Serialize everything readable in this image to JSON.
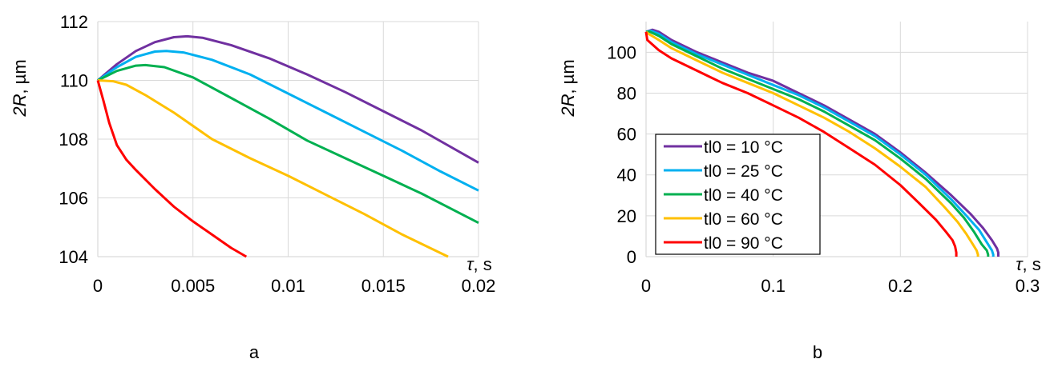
{
  "chart_data": [
    {
      "type": "line",
      "panel_label": "a",
      "ylabel_italic": "2R",
      "ylabel_rest": ", µm",
      "xlabel_italic": "τ",
      "xlabel_rest": ", s",
      "xlim": [
        0,
        0.02
      ],
      "ylim": [
        104,
        112
      ],
      "xticks": [
        0,
        0.005,
        0.01,
        0.015,
        0.02
      ],
      "xtick_labels": [
        "0",
        "0.005",
        "0.01",
        "0.015",
        "0.02"
      ],
      "yticks": [
        104,
        106,
        108,
        110,
        112
      ],
      "ytick_labels": [
        "104",
        "106",
        "108",
        "110",
        "112"
      ],
      "grid": true,
      "series": [
        {
          "color": "#7030A0",
          "x": [
            0,
            0.001,
            0.002,
            0.003,
            0.004,
            0.0047,
            0.0055,
            0.007,
            0.009,
            0.011,
            0.013,
            0.015,
            0.017,
            0.02
          ],
          "y": [
            110,
            110.55,
            111.0,
            111.3,
            111.47,
            111.5,
            111.45,
            111.2,
            110.75,
            110.2,
            109.6,
            108.95,
            108.3,
            107.2
          ]
        },
        {
          "color": "#00B0F0",
          "x": [
            0,
            0.001,
            0.002,
            0.003,
            0.0036,
            0.0045,
            0.006,
            0.008,
            0.01,
            0.012,
            0.014,
            0.016,
            0.018,
            0.02
          ],
          "y": [
            110,
            110.45,
            110.8,
            110.98,
            111.0,
            110.95,
            110.7,
            110.2,
            109.55,
            108.9,
            108.25,
            107.6,
            106.9,
            106.25
          ]
        },
        {
          "color": "#00B050",
          "x": [
            0,
            0.001,
            0.002,
            0.0025,
            0.0035,
            0.005,
            0.007,
            0.009,
            0.011,
            0.013,
            0.015,
            0.017,
            0.02
          ],
          "y": [
            110,
            110.32,
            110.5,
            110.52,
            110.45,
            110.1,
            109.4,
            108.7,
            107.95,
            107.35,
            106.75,
            106.15,
            105.15
          ]
        },
        {
          "color": "#FFC000",
          "x": [
            0,
            0.0008,
            0.0015,
            0.0025,
            0.004,
            0.006,
            0.008,
            0.01,
            0.012,
            0.014,
            0.016,
            0.0184
          ],
          "y": [
            110,
            109.97,
            109.85,
            109.5,
            108.9,
            108.0,
            107.35,
            106.75,
            106.1,
            105.45,
            104.75,
            104.0
          ]
        },
        {
          "color": "#FF0000",
          "x": [
            0,
            0.0003,
            0.0006,
            0.001,
            0.0015,
            0.002,
            0.003,
            0.004,
            0.005,
            0.006,
            0.007,
            0.0078
          ],
          "y": [
            110,
            109.3,
            108.55,
            107.8,
            107.3,
            106.95,
            106.3,
            105.7,
            105.2,
            104.75,
            104.3,
            104.0
          ]
        }
      ]
    },
    {
      "type": "line",
      "panel_label": "b",
      "ylabel_italic": "2R",
      "ylabel_rest": ", µm",
      "xlabel_italic": "τ",
      "xlabel_rest": ", s",
      "xlim": [
        0,
        0.3
      ],
      "ylim": [
        0,
        115
      ],
      "xticks": [
        0,
        0.1,
        0.2,
        0.3
      ],
      "xtick_labels": [
        "0",
        "0.1",
        "0.2",
        "0.3"
      ],
      "yticks": [
        0,
        20,
        40,
        60,
        80,
        100
      ],
      "ytick_labels": [
        "0",
        "20",
        "40",
        "60",
        "80",
        "100"
      ],
      "grid": true,
      "legend_position": "bottom-left",
      "series": [
        {
          "name": "tl0 = 10 °C",
          "color": "#7030A0",
          "x": [
            0,
            0.005,
            0.01,
            0.02,
            0.04,
            0.06,
            0.08,
            0.1,
            0.12,
            0.14,
            0.16,
            0.18,
            0.2,
            0.22,
            0.24,
            0.255,
            0.265,
            0.272,
            0.276,
            0.277,
            0.277
          ],
          "y": [
            110,
            111,
            110,
            106,
            100,
            95,
            90,
            86,
            80,
            74,
            67,
            60,
            51,
            41,
            30,
            21,
            14,
            8,
            4,
            2,
            0
          ]
        },
        {
          "name": "tl0 = 25 °C",
          "color": "#00B0F0",
          "x": [
            0,
            0.004,
            0.01,
            0.02,
            0.04,
            0.06,
            0.08,
            0.1,
            0.12,
            0.14,
            0.16,
            0.18,
            0.2,
            0.22,
            0.24,
            0.252,
            0.262,
            0.268,
            0.272,
            0.273,
            0.273
          ],
          "y": [
            110,
            110.5,
            109,
            105,
            99,
            94,
            89,
            84,
            79,
            73,
            66,
            59,
            50,
            40,
            28,
            20,
            13,
            7,
            3,
            1,
            0
          ]
        },
        {
          "name": "tl0 = 40 °C",
          "color": "#00B050",
          "x": [
            0,
            0.003,
            0.01,
            0.02,
            0.04,
            0.06,
            0.08,
            0.1,
            0.12,
            0.14,
            0.16,
            0.18,
            0.2,
            0.22,
            0.24,
            0.25,
            0.258,
            0.264,
            0.268,
            0.269,
            0.269
          ],
          "y": [
            110,
            110,
            108,
            104,
            98,
            92,
            87,
            82,
            77,
            71,
            64,
            57,
            48,
            38,
            26,
            19,
            12,
            6,
            3,
            1,
            0
          ]
        },
        {
          "name": "tl0 = 60 °C",
          "color": "#FFC000",
          "x": [
            0,
            0.002,
            0.01,
            0.02,
            0.04,
            0.06,
            0.08,
            0.1,
            0.12,
            0.14,
            0.16,
            0.18,
            0.2,
            0.22,
            0.235,
            0.245,
            0.252,
            0.257,
            0.26,
            0.261,
            0.261
          ],
          "y": [
            110,
            109,
            106,
            102,
            96,
            90,
            85,
            80,
            74,
            68,
            61,
            53,
            44,
            34,
            24,
            17,
            11,
            6,
            3,
            1,
            0
          ]
        },
        {
          "name": "tl0 = 90 °C",
          "color": "#FF0000",
          "x": [
            0,
            0.001,
            0.01,
            0.02,
            0.04,
            0.06,
            0.08,
            0.1,
            0.12,
            0.14,
            0.16,
            0.18,
            0.2,
            0.215,
            0.228,
            0.236,
            0.241,
            0.243,
            0.244,
            0.244
          ],
          "y": [
            110,
            106,
            101,
            97,
            91,
            85,
            80,
            74,
            68,
            61,
            53,
            45,
            35,
            26,
            18,
            12,
            8,
            5,
            2,
            0
          ]
        }
      ]
    }
  ]
}
